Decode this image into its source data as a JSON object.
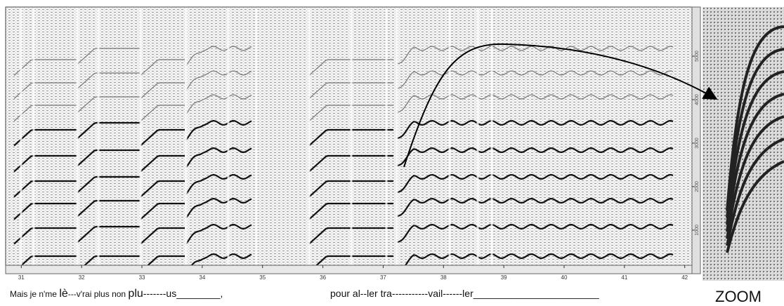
{
  "spectrogram": {
    "x_axis": {
      "lim": [
        30.74,
        42.12
      ],
      "ticks": [
        31,
        32,
        33,
        34,
        35,
        36,
        37,
        38,
        39,
        40,
        41,
        42
      ]
    },
    "y_axis": {
      "lim": [
        30,
        6130
      ],
      "ticks": [
        1000,
        2000,
        3000,
        4000,
        5000
      ]
    },
    "lyrics": [
      [
        "Mais je n'me ",
        "lè",
        "---v'rai plus non ",
        "plu",
        "-------us________,"
      ],
      [
        "pour al--ler tra-----------vail------ler_______________________"
      ]
    ]
  },
  "zoom": {
    "label": "ZOOM"
  }
}
